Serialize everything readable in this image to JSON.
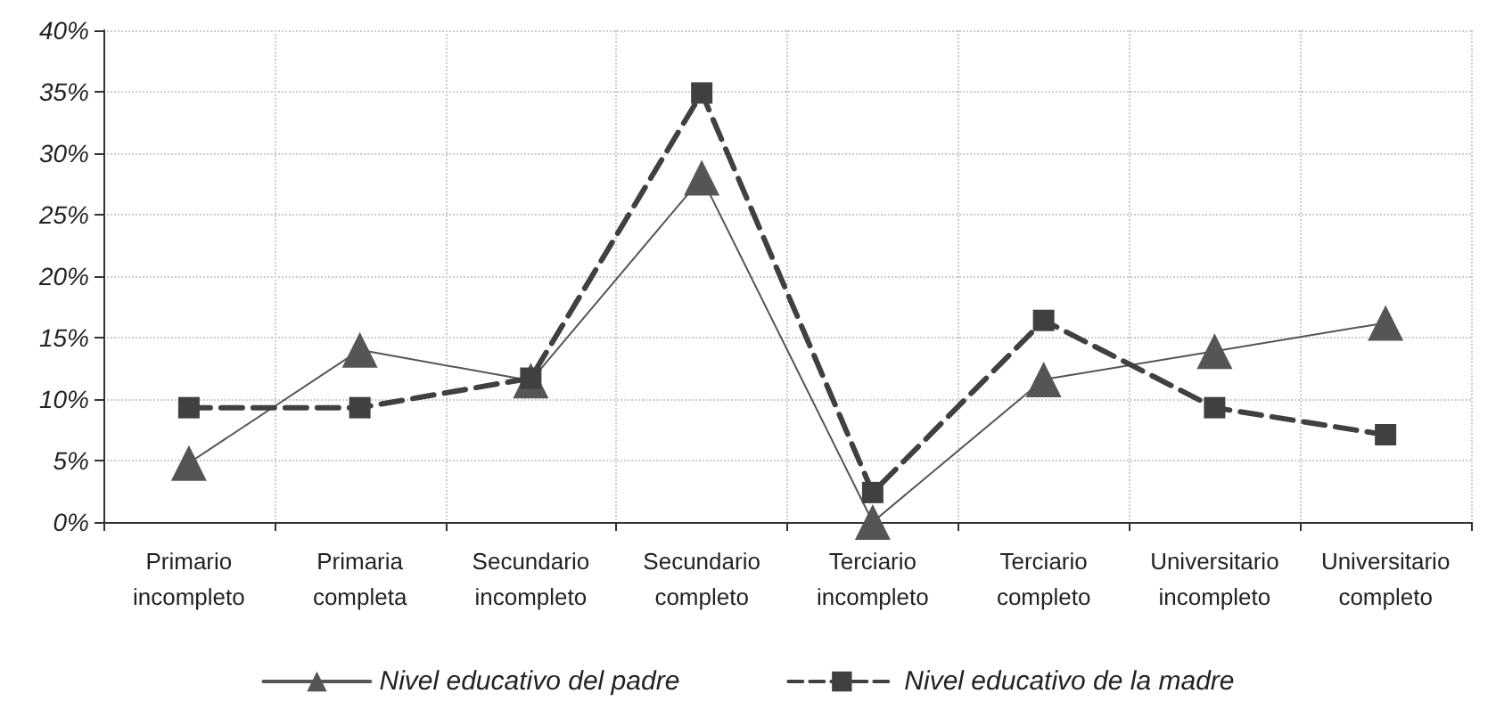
{
  "chart_data": {
    "type": "line",
    "categories": [
      "Primario\nincompleto",
      "Primaria\ncompleta",
      "Secundario\nincompleto",
      "Secundario\ncompleto",
      "Terciario\nincompleto",
      "Terciario\ncompleto",
      "Universitario\nincompleto",
      "Universitario\ncompleto"
    ],
    "series": [
      {
        "name": "Nivel educativo del padre",
        "color": "#555555",
        "marker": "triangle",
        "line_style": "solid",
        "values": [
          4.8,
          14,
          11.5,
          28,
          0,
          11.6,
          13.9,
          16.2
        ]
      },
      {
        "name": "Nivel educativo de la madre",
        "color": "#404040",
        "marker": "square",
        "line_style": "dashed",
        "values": [
          9.3,
          9.3,
          11.7,
          34.9,
          2.4,
          16.4,
          9.3,
          7.1
        ]
      }
    ],
    "ylim": [
      0,
      40
    ],
    "yticks": [
      {
        "value": 0,
        "label": "0%"
      },
      {
        "value": 5,
        "label": "5%"
      },
      {
        "value": 10,
        "label": "10%"
      },
      {
        "value": 15,
        "label": "15%"
      },
      {
        "value": 20,
        "label": "20%"
      },
      {
        "value": 25,
        "label": "25%"
      },
      {
        "value": 30,
        "label": "30%"
      },
      {
        "value": 35,
        "label": "35%"
      },
      {
        "value": 40,
        "label": "40%"
      }
    ],
    "grid": true,
    "legend": "bottom"
  }
}
